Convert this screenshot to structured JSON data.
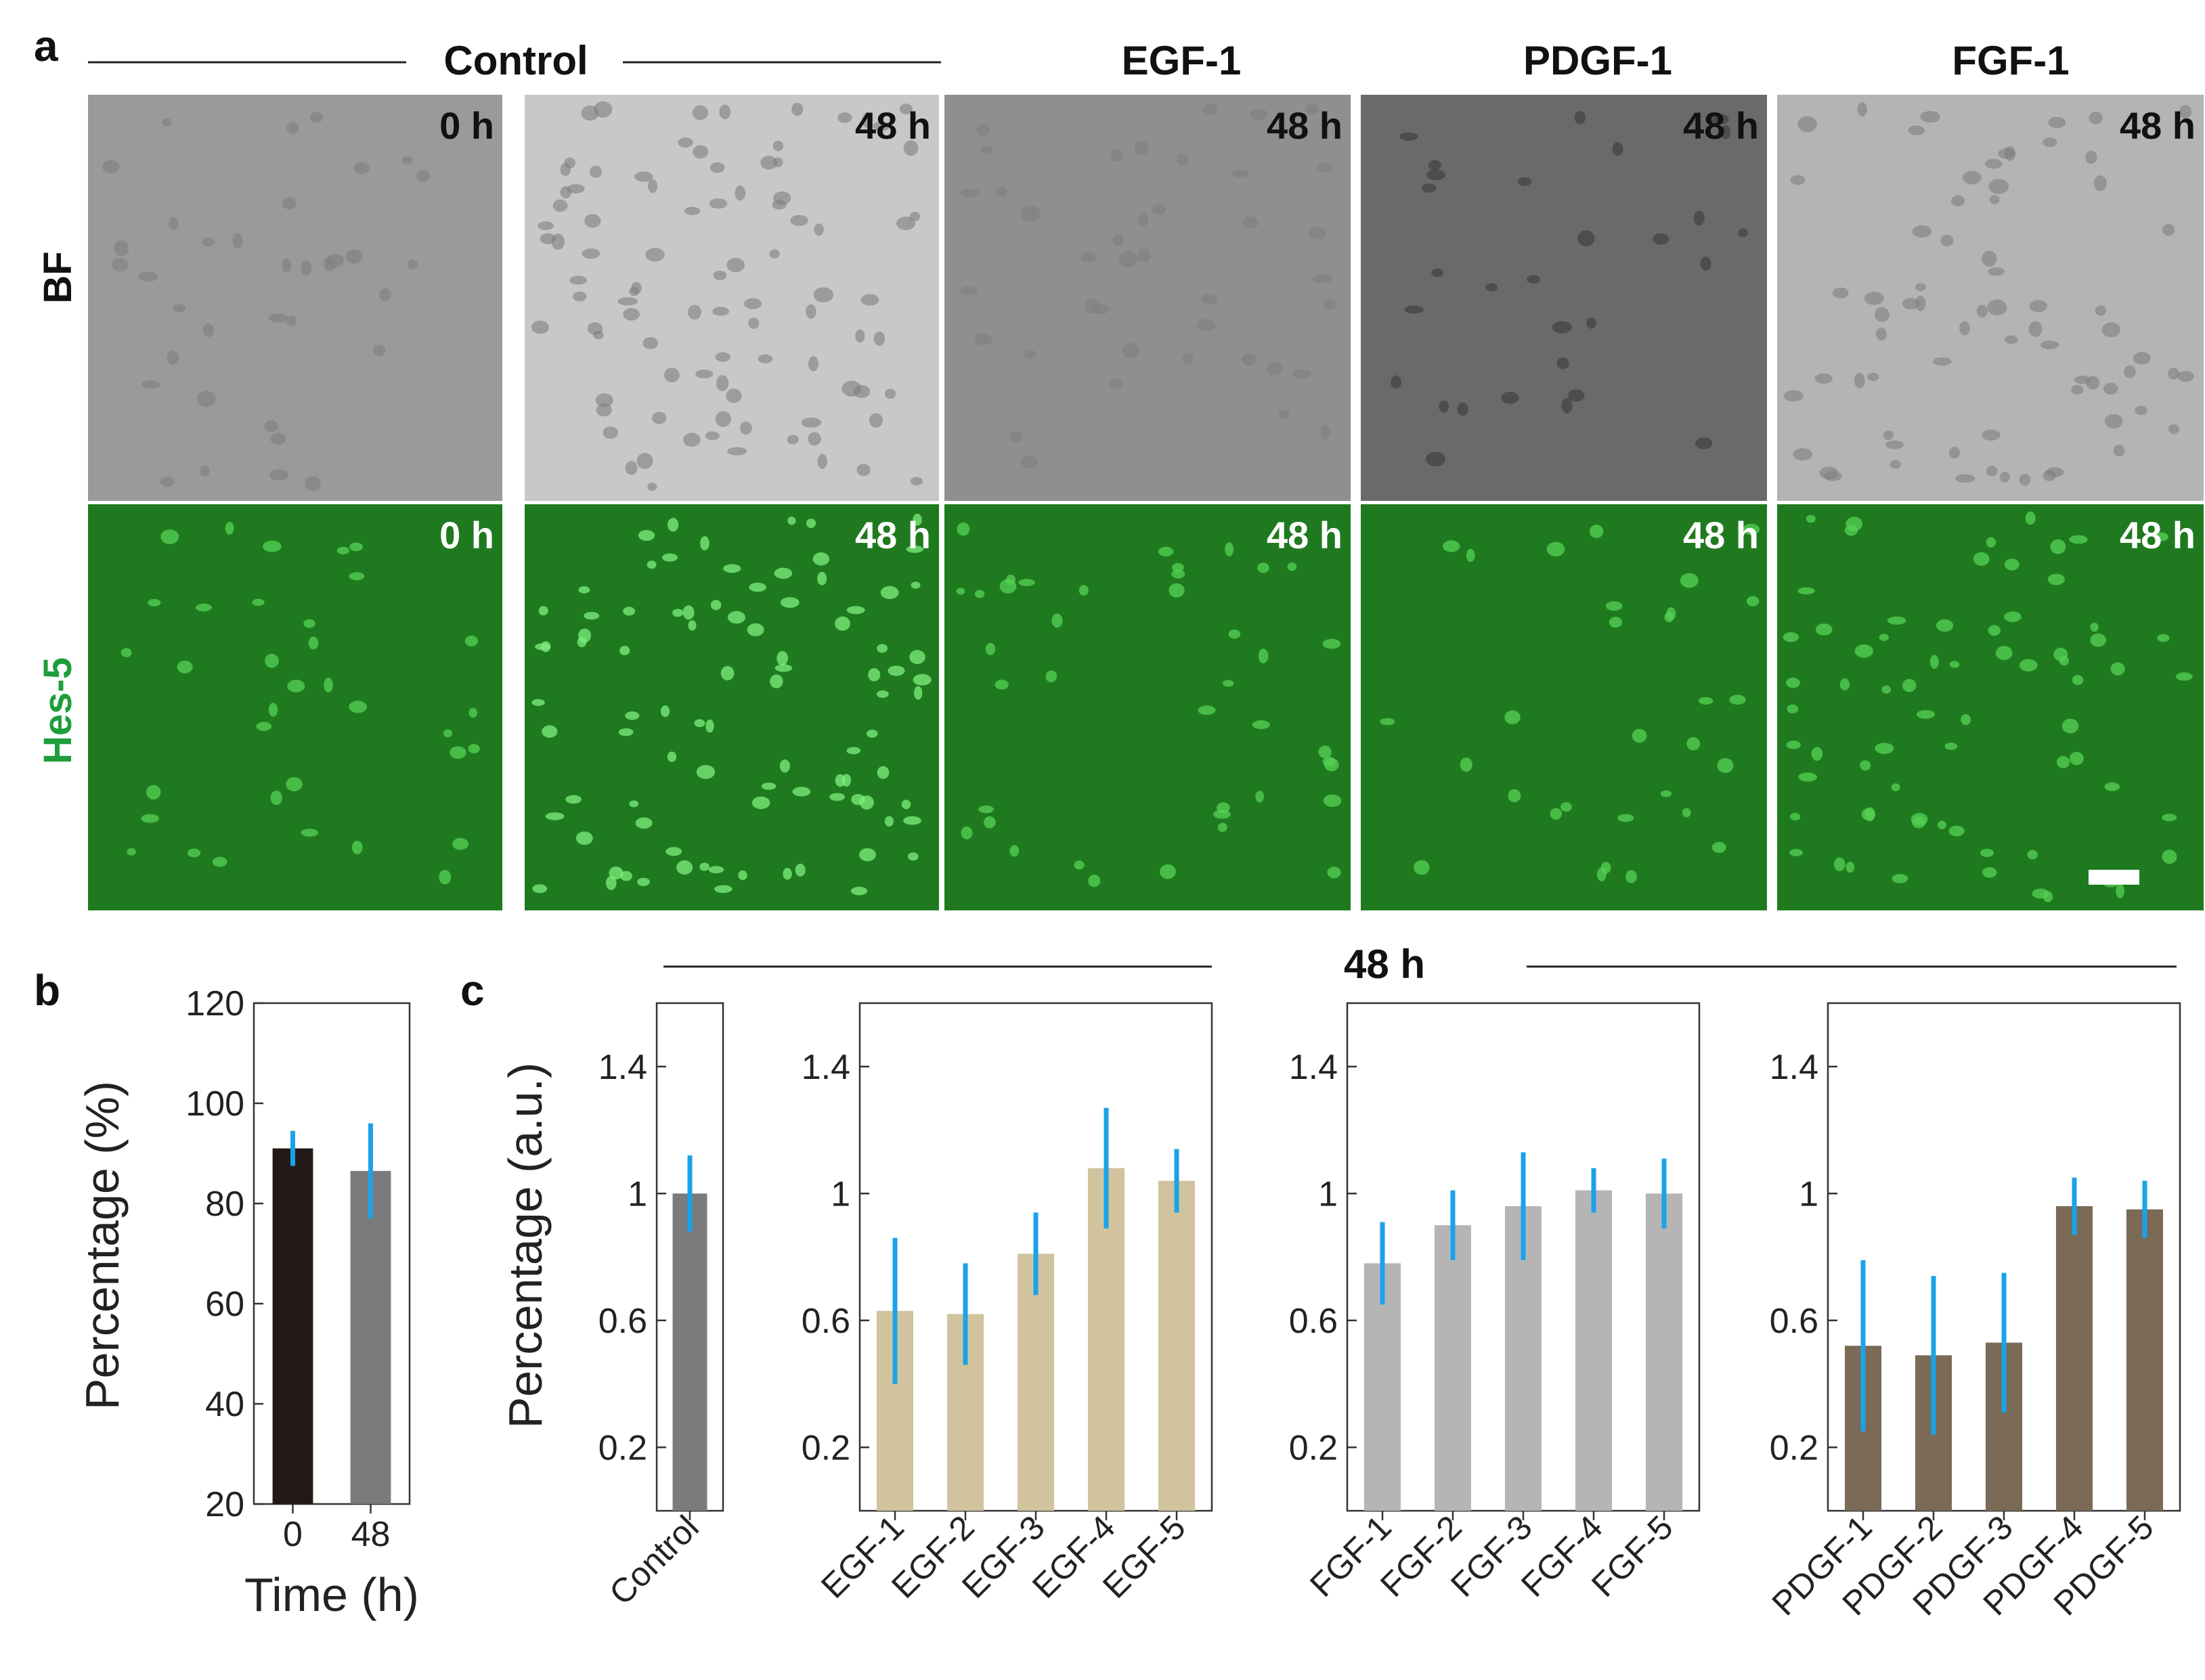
{
  "figure": {
    "panel_labels": [
      "a",
      "b",
      "c"
    ],
    "panel_a": {
      "group_header": "Control",
      "column_headers": [
        "EGF-1",
        "PDGF-1",
        "FGF-1"
      ],
      "row_labels": [
        "BF",
        "Hes-5"
      ],
      "row_label_colors": [
        "#111111",
        "#1e9e3a"
      ],
      "time_labels": [
        "0 h",
        "48 h",
        "48 h",
        "48 h",
        "48 h"
      ],
      "bf_backgrounds": [
        "#9a9a9a",
        "#c8c8c8",
        "#8f8f8f",
        "#6a6a6a",
        "#b4b4b4"
      ],
      "green_background": "#1f7a1f"
    },
    "panel_c_header": "48 h"
  },
  "chart_data": [
    {
      "type": "bar",
      "panel": "b",
      "categories": [
        "0",
        "48"
      ],
      "values": [
        91,
        86.5
      ],
      "errors": [
        3.5,
        9.5
      ],
      "colors": [
        "#231a17",
        "#7b7b7b"
      ],
      "error_color": "#1aa3e8",
      "xlabel": "Time (h)",
      "ylabel": "Percentage (%)",
      "ylim": [
        20,
        120
      ],
      "yticks": [
        "20",
        "40",
        "60",
        "80",
        "100",
        "120"
      ]
    },
    {
      "type": "bar",
      "panel": "c",
      "categories": [
        "Control"
      ],
      "values": [
        1.0
      ],
      "errors": [
        0.12
      ],
      "color": "#7b7b7b",
      "error_color": "#1aa3e8",
      "ylabel": "Percentage (a.u.)",
      "ylim": [
        0,
        1.6
      ],
      "yticks": [
        "0.2",
        "0.6",
        "1",
        "1.4"
      ]
    },
    {
      "type": "bar",
      "panel": "c",
      "categories": [
        "EGF-1",
        "EGF-2",
        "EGF-3",
        "EGF-4",
        "EGF-5"
      ],
      "values": [
        0.63,
        0.62,
        0.81,
        1.08,
        1.04
      ],
      "errors": [
        0.23,
        0.16,
        0.13,
        0.19,
        0.1
      ],
      "color": "#d0c39e",
      "error_color": "#1aa3e8",
      "ylim": [
        0,
        1.6
      ],
      "yticks": [
        "0.2",
        "0.6",
        "1",
        "1.4"
      ]
    },
    {
      "type": "bar",
      "panel": "c",
      "categories": [
        "FGF-1",
        "FGF-2",
        "FGF-3",
        "FGF-4",
        "FGF-5"
      ],
      "values": [
        0.78,
        0.9,
        0.96,
        1.01,
        1.0
      ],
      "errors": [
        0.13,
        0.11,
        0.17,
        0.07,
        0.11
      ],
      "color": "#b5b5b5",
      "error_color": "#1aa3e8",
      "ylim": [
        0,
        1.6
      ],
      "yticks": [
        "0.2",
        "0.6",
        "1",
        "1.4"
      ]
    },
    {
      "type": "bar",
      "panel": "c",
      "categories": [
        "PDGF-1",
        "PDGF-2",
        "PDGF-3",
        "PDGF-4",
        "PDGF-5"
      ],
      "values": [
        0.52,
        0.49,
        0.53,
        0.96,
        0.95
      ],
      "errors": [
        0.27,
        0.25,
        0.22,
        0.09,
        0.09
      ],
      "color": "#7a6a56",
      "error_color": "#1aa3e8",
      "ylim": [
        0,
        1.6
      ],
      "yticks": [
        "0.2",
        "0.6",
        "1",
        "1.4"
      ]
    }
  ]
}
